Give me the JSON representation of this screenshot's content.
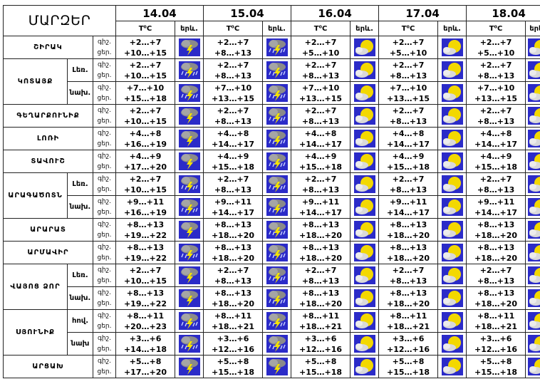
{
  "header": {
    "title": "ՄԱՐԶԵՐ",
    "dates": [
      "14.04",
      "15.04",
      "16.04",
      "17.04",
      "18.04"
    ],
    "temp_label": "T⁰C",
    "weather_label": "երև."
  },
  "row_labels": {
    "night": "գիշ.",
    "day": "ցեր."
  },
  "icon_colors": {
    "sun": "#f3d800",
    "sky": "#2b2bc8",
    "cloud": "#8a8a8a",
    "lightning": "#f5e300"
  },
  "rows": [
    {
      "region": "ՇԻՐԱԿ",
      "sub": "",
      "labels": [
        "գիշ.",
        "ցեր."
      ],
      "days": [
        {
          "n": "+2…+7",
          "d": "+10…+15",
          "icon": "storm-icon"
        },
        {
          "n": "+2…+7",
          "d": "+8…+13",
          "icon": "rain-icon"
        },
        {
          "n": "+2…+7",
          "d": "+5…+10",
          "icon": "sun-cloud-icon"
        },
        {
          "n": "+2…+7",
          "d": "+5…+10",
          "icon": "sun-cloud-icon"
        },
        {
          "n": "+2…+7",
          "d": "+5…+10",
          "icon": "sun-cloud-icon"
        }
      ]
    },
    {
      "region": "ԿՈՏԱՅՔ",
      "sub": "Լեռ.",
      "labels": [
        "գիշ.",
        "ցեր."
      ],
      "days": [
        {
          "n": "+2…+7",
          "d": "+10…+15",
          "icon": "rain-icon"
        },
        {
          "n": "+2…+7",
          "d": "+8…+13",
          "icon": "rain-icon"
        },
        {
          "n": "+2…+7",
          "d": "+8…+13",
          "icon": "sun-cloud-icon"
        },
        {
          "n": "+2…+7",
          "d": "+8…+13",
          "icon": "sun-cloud-icon"
        },
        {
          "n": "+2…+7",
          "d": "+8…+13",
          "icon": "sun-cloud-icon"
        }
      ]
    },
    {
      "region": "",
      "sub": "նախ.",
      "labels": [
        "գիշ.",
        "ցեր."
      ],
      "days": [
        {
          "n": "+7…+10",
          "d": "+15…+18",
          "icon": "rain-icon"
        },
        {
          "n": "+7…+10",
          "d": "+13…+15",
          "icon": "rain-icon"
        },
        {
          "n": "+7…+10",
          "d": "+13…+15",
          "icon": "sun-cloud-icon"
        },
        {
          "n": "+7…+10",
          "d": "+13…+15",
          "icon": "sun-cloud-icon"
        },
        {
          "n": "+7…+10",
          "d": "+13…+15",
          "icon": "sun-cloud-icon"
        }
      ]
    },
    {
      "region": "ԳԵՂԱՐՔՈՒՆԻՔ",
      "sub": "",
      "labels": [
        "գիշ.",
        "ցեր."
      ],
      "days": [
        {
          "n": "+2…+7",
          "d": "+10…+15",
          "icon": "storm-icon"
        },
        {
          "n": "+2…+7",
          "d": "+8…+13",
          "icon": "rain-icon"
        },
        {
          "n": "+2…+7",
          "d": "+8…+13",
          "icon": "sun-cloud-icon"
        },
        {
          "n": "+2…+7",
          "d": "+8…+13",
          "icon": "sun-cloud-icon"
        },
        {
          "n": "+2…+7",
          "d": "+8…+13",
          "icon": "sun-cloud-icon"
        }
      ]
    },
    {
      "region": "ԼՈՌԻ",
      "sub": "",
      "labels": [
        "գիշ.",
        "ցեր."
      ],
      "days": [
        {
          "n": "+4…+8",
          "d": "+16…+19",
          "icon": "storm-icon"
        },
        {
          "n": "+4…+8",
          "d": "+14…+17",
          "icon": "rain-icon"
        },
        {
          "n": "+4…+8",
          "d": "+14…+17",
          "icon": "sun-cloud-icon"
        },
        {
          "n": "+4…+8",
          "d": "+14…+17",
          "icon": "sun-cloud-icon"
        },
        {
          "n": "+4…+8",
          "d": "+14…+17",
          "icon": "sun-cloud-icon"
        }
      ]
    },
    {
      "region": "ՏԱՎՈՒՇ",
      "sub": "",
      "labels": [
        "գիշ.",
        "ցեր."
      ],
      "days": [
        {
          "n": "+4…+9",
          "d": "+17…+20",
          "icon": "storm-icon"
        },
        {
          "n": "+4…+9",
          "d": "+15…+18",
          "icon": "rain-icon"
        },
        {
          "n": "+4…+9",
          "d": "+15…+18",
          "icon": "sun-cloud-icon"
        },
        {
          "n": "+4…+9",
          "d": "+15…+18",
          "icon": "sun-cloud-icon"
        },
        {
          "n": "+4…+9",
          "d": "+15…+18",
          "icon": "sun-cloud-icon"
        }
      ]
    },
    {
      "region": "ԱՐԱԳԱԾՈՏՆ",
      "sub": "Լեռ.",
      "labels": [
        "գիշ.",
        "ցեր."
      ],
      "days": [
        {
          "n": "+2…+7",
          "d": "+10…+15",
          "icon": "rain-icon"
        },
        {
          "n": "+2…+7",
          "d": "+8…+13",
          "icon": "rain-icon"
        },
        {
          "n": "+2…+7",
          "d": "+8…+13",
          "icon": "sun-cloud-icon"
        },
        {
          "n": "+2…+7",
          "d": "+8…+13",
          "icon": "sun-cloud-icon"
        },
        {
          "n": "+2…+7",
          "d": "+8…+13",
          "icon": "sun-cloud-icon"
        }
      ]
    },
    {
      "region": "",
      "sub": "նախ.",
      "labels": [
        "գիշ.",
        "ցեր."
      ],
      "days": [
        {
          "n": "+9…+11",
          "d": "+16…+19",
          "icon": "rain-icon"
        },
        {
          "n": "+9…+11",
          "d": "+14…+17",
          "icon": "rain-icon"
        },
        {
          "n": "+9…+11",
          "d": "+14…+17",
          "icon": "sun-cloud-icon"
        },
        {
          "n": "+9…+11",
          "d": "+14…+17",
          "icon": "sun-cloud-icon"
        },
        {
          "n": "+9…+11",
          "d": "+14…+17",
          "icon": "sun-cloud-icon"
        }
      ]
    },
    {
      "region": "ԱՐԱՐԱՏ",
      "sub": "",
      "labels": [
        "գիշ.",
        "ցեր."
      ],
      "days": [
        {
          "n": "+8…+13",
          "d": "+19…+22",
          "icon": "storm-icon"
        },
        {
          "n": "+8…+13",
          "d": "+18…+20",
          "icon": "rain-icon"
        },
        {
          "n": "+8…+13",
          "d": "+18…+20",
          "icon": "sun-cloud-icon"
        },
        {
          "n": "+8…+13",
          "d": "+18…+20",
          "icon": "sun-cloud-icon"
        },
        {
          "n": "+8…+13",
          "d": "+18…+20",
          "icon": "sun-cloud-icon"
        }
      ]
    },
    {
      "region": "ԱՐՄԱՎԻՐ",
      "sub": "",
      "labels": [
        "գիշ.",
        "ցեր."
      ],
      "days": [
        {
          "n": "+8…+13",
          "d": "+19…+22",
          "icon": "rain-icon"
        },
        {
          "n": "+8…+13",
          "d": "+18…+20",
          "icon": "rain-icon"
        },
        {
          "n": "+8…+13",
          "d": "+18…+20",
          "icon": "sun-cloud-icon"
        },
        {
          "n": "+8…+13",
          "d": "+18…+20",
          "icon": "sun-cloud-icon"
        },
        {
          "n": "+8…+13",
          "d": "+18…+20",
          "icon": "sun-cloud-icon"
        }
      ]
    },
    {
      "region": "ՎԱՅՈՑ ՁՈՐ",
      "sub": "Լեռ.",
      "labels": [
        "գիշ.",
        "ցեր."
      ],
      "days": [
        {
          "n": "+2…+7",
          "d": "+10…+15",
          "icon": "storm-icon"
        },
        {
          "n": "+2…+7",
          "d": "+8…+13",
          "icon": "rain-icon"
        },
        {
          "n": "+2…+7",
          "d": "+8…+13",
          "icon": "sun-cloud-icon"
        },
        {
          "n": "+2…+7",
          "d": "+8…+13",
          "icon": "sun-cloud-icon"
        },
        {
          "n": "+2…+7",
          "d": "+8…+13",
          "icon": "sun-cloud-icon"
        }
      ]
    },
    {
      "region": "",
      "sub": "նախ.",
      "labels": [
        "գիշ.",
        "ցեր."
      ],
      "days": [
        {
          "n": "+8…+13",
          "d": "+19…+22",
          "icon": "storm-icon"
        },
        {
          "n": "+8…+13",
          "d": "+18…+20",
          "icon": "rain-icon"
        },
        {
          "n": "+8…+13",
          "d": "+18…+20",
          "icon": "sun-cloud-icon"
        },
        {
          "n": "+8…+13",
          "d": "+18…+20",
          "icon": "sun-cloud-icon"
        },
        {
          "n": "+8…+13",
          "d": "+18…+20",
          "icon": "sun-cloud-icon"
        }
      ]
    },
    {
      "region": "ՍՅՈՒՆԻՔ",
      "sub": "հով.",
      "labels": [
        "գիշ.",
        "ցեր."
      ],
      "days": [
        {
          "n": "+8…+11",
          "d": "+20…+23",
          "icon": "rain-icon"
        },
        {
          "n": "+8…+11",
          "d": "+18…+21",
          "icon": "rain-icon"
        },
        {
          "n": "+8…+11",
          "d": "+18…+21",
          "icon": "sun-cloud-icon"
        },
        {
          "n": "+8…+11",
          "d": "+18…+21",
          "icon": "sun-cloud-icon"
        },
        {
          "n": "+8…+11",
          "d": "+18…+21",
          "icon": "sun-cloud-icon"
        }
      ]
    },
    {
      "region": "",
      "sub": "նախ",
      "labels": [
        "գիշ.",
        "ցեր."
      ],
      "days": [
        {
          "n": "+3…+6",
          "d": "+14…+18",
          "icon": "rain-icon"
        },
        {
          "n": "+3…+6",
          "d": "+12…+16",
          "icon": "rain-icon"
        },
        {
          "n": "+3…+6",
          "d": "+12…+16",
          "icon": "sun-cloud-icon"
        },
        {
          "n": "+3…+6",
          "d": "+12…+16",
          "icon": "sun-cloud-icon"
        },
        {
          "n": "+3…+6",
          "d": "+12…+16",
          "icon": "sun-cloud-icon"
        }
      ]
    },
    {
      "region": "ԱՐՑԱԽ",
      "sub": "",
      "labels": [
        "գիշ.",
        "ցեր."
      ],
      "days": [
        {
          "n": "+5…+8",
          "d": "+17…+20",
          "icon": "storm-icon"
        },
        {
          "n": "+5…+8",
          "d": "+15…+18",
          "icon": "storm-icon"
        },
        {
          "n": "+5…+8",
          "d": "+15…+18",
          "icon": "sun-cloud-icon"
        },
        {
          "n": "+5…+8",
          "d": "+15…+18",
          "icon": "sun-cloud-icon"
        },
        {
          "n": "+5…+8",
          "d": "+15…+18",
          "icon": "sun-cloud-icon"
        }
      ]
    }
  ]
}
